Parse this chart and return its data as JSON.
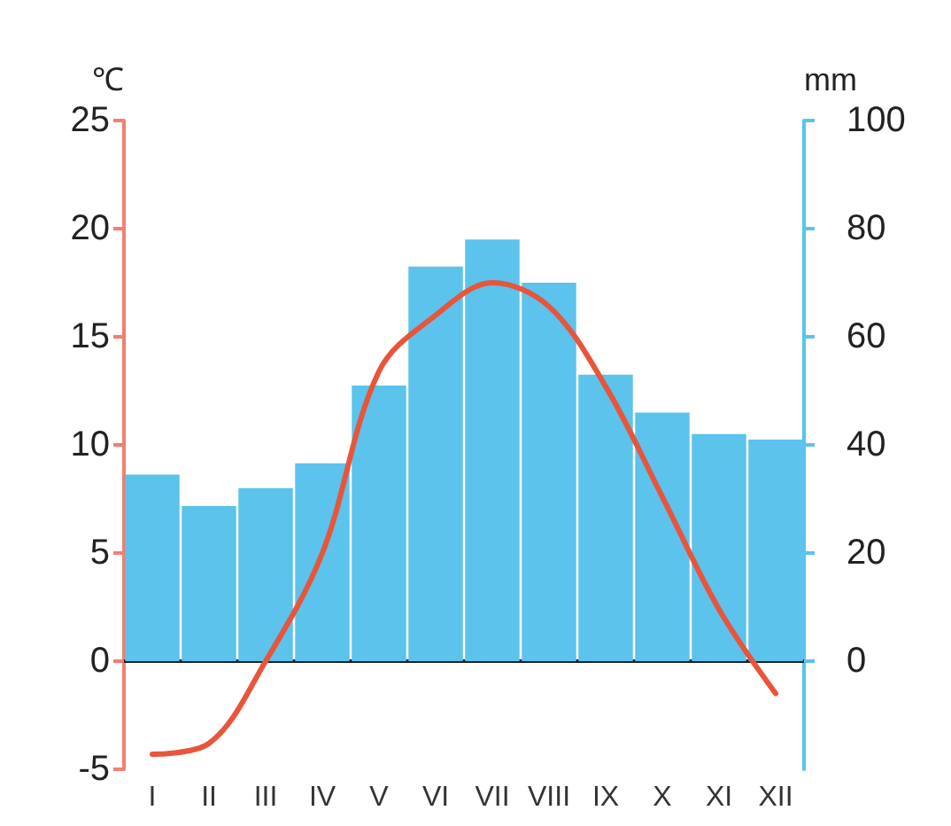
{
  "chart_data": {
    "type": "bar",
    "ylabel": "℃",
    "y2label": "mm",
    "categories": [
      "I",
      "II",
      "III",
      "IV",
      "V",
      "VI",
      "VII",
      "VIII",
      "IX",
      "X",
      "XI",
      "XII"
    ],
    "series": [
      {
        "axis": "y2",
        "color": "#5bc3ec",
        "values": [
          34.5,
          28.7,
          32,
          36.6,
          51,
          73,
          78,
          70,
          53,
          46,
          42,
          41
        ]
      },
      {
        "type": "line",
        "color": "#e8553a",
        "values": [
          -4.3,
          -3.8,
          0,
          5,
          13.4,
          16,
          17.5,
          16.4,
          12.7,
          7.6,
          2.4,
          -1.5
        ]
      }
    ],
    "ylim": [
      -5,
      25
    ],
    "yticks": [
      -5,
      0,
      5,
      10,
      15,
      20,
      25
    ],
    "y2lim": [
      -20,
      100
    ],
    "y2ticks": [
      0,
      20,
      40,
      60,
      80,
      100
    ],
    "marker": "none",
    "line_style": "solid"
  }
}
